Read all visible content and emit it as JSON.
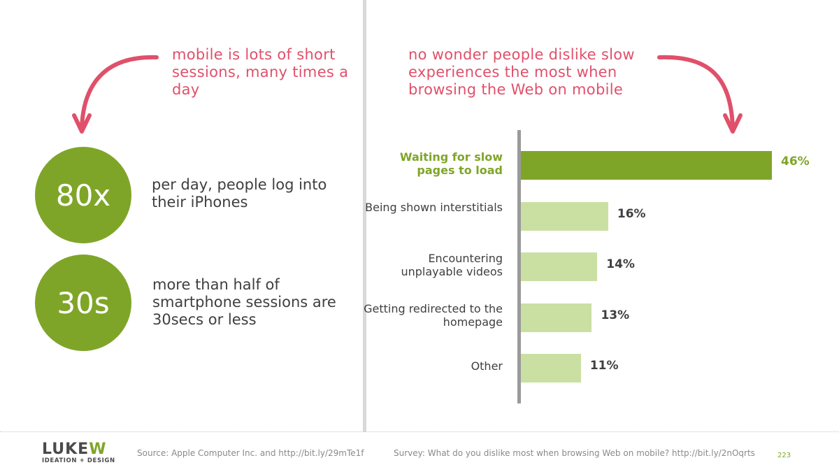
{
  "colors": {
    "accent_green": "#7fa528",
    "light_green": "#cae0a3",
    "callout_pink": "#e0506a",
    "text_dark": "#3f3f3f",
    "axis_gray": "#9a9a9a"
  },
  "left": {
    "callout": "mobile is lots of short sessions, many times a day",
    "stats": [
      {
        "value": "80x",
        "text": "per day, people log into their iPhones"
      },
      {
        "value": "30s",
        "text": "more than half of smartphone sessions are 30secs or less"
      }
    ]
  },
  "right": {
    "callout": "no wonder people dislike slow experiences the most when browsing the Web on mobile"
  },
  "chart_data": {
    "type": "bar",
    "orientation": "horizontal",
    "categories": [
      "Waiting for slow pages to load",
      "Being shown interstitials",
      "Encountering unplayable videos",
      "Getting redirected to the homepage",
      "Other"
    ],
    "values": [
      46,
      16,
      14,
      13,
      11
    ],
    "value_labels": [
      "46%",
      "16%",
      "14%",
      "13%",
      "11%"
    ],
    "highlight_index": 0,
    "xlim": [
      0,
      50
    ]
  },
  "footer": {
    "logo_main": "LUKEW",
    "logo_sub": "IDEATION + DESIGN",
    "source_left": "Source: Apple Computer Inc. and  http://bit.ly/29mTe1f",
    "source_right": "Survey: What do you dislike most when browsing Web on mobile? http://bit.ly/2nOqrts",
    "page_number": "223"
  }
}
